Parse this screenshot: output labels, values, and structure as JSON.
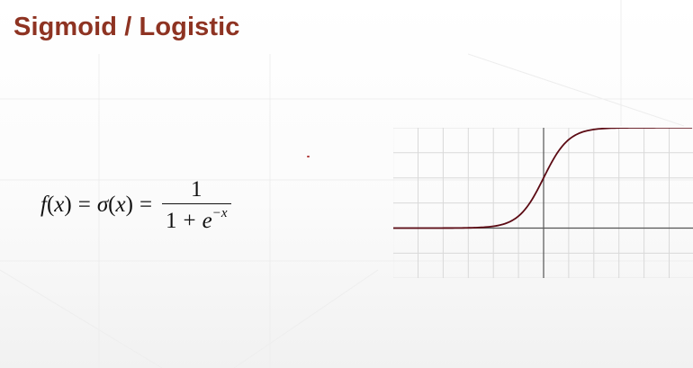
{
  "slide": {
    "title": "Sigmoid / Logistic",
    "title_color": "#8e3322"
  },
  "formula": {
    "f": "f",
    "x1": "x",
    "equals1": "=",
    "sigma": "σ",
    "x2": "x",
    "equals2": "=",
    "numerator": "1",
    "denominator_one": "1",
    "plus": "+",
    "e": "e",
    "exponent": "−x"
  },
  "chart_data": {
    "type": "line",
    "series": [
      {
        "function": "1/(1+exp(-x))",
        "color": "#5c0b14"
      }
    ],
    "grid": true,
    "grid_color": "#d9d9d9",
    "axis_color": "#555555"
  }
}
